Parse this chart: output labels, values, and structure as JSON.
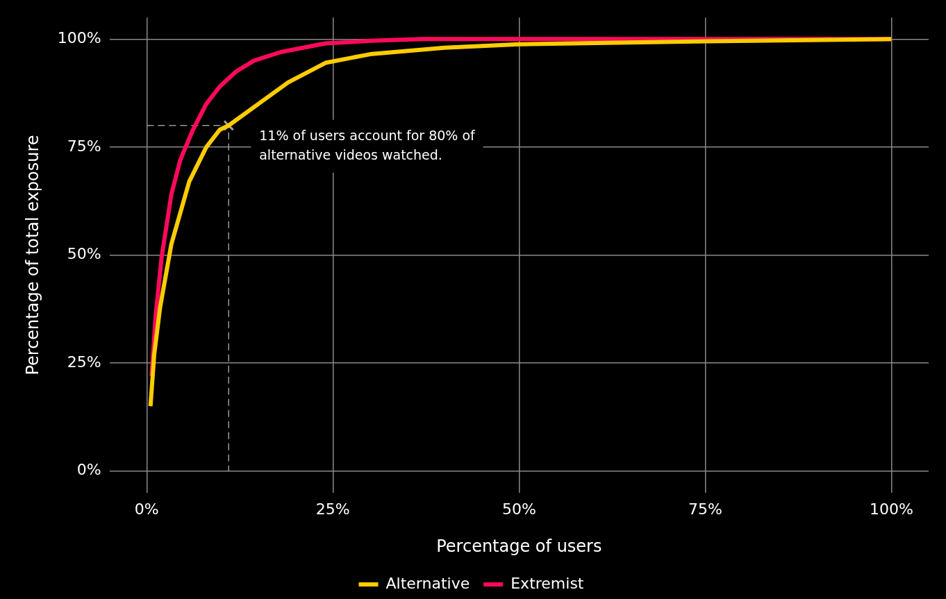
{
  "chart_data": {
    "type": "line",
    "xlabel": "Percentage of users",
    "ylabel": "Percentage of total exposure",
    "xlim": [
      -5,
      105
    ],
    "ylim": [
      -5,
      105
    ],
    "xticks": [
      {
        "value": 0,
        "label": "0%"
      },
      {
        "value": 25,
        "label": "25%"
      },
      {
        "value": 50,
        "label": "50%"
      },
      {
        "value": 75,
        "label": "75%"
      },
      {
        "value": 100,
        "label": "100%"
      }
    ],
    "yticks": [
      {
        "value": 0,
        "label": "0%"
      },
      {
        "value": 25,
        "label": "25%"
      },
      {
        "value": 50,
        "label": "50%"
      },
      {
        "value": 75,
        "label": "75%"
      },
      {
        "value": 100,
        "label": "100%"
      }
    ],
    "grid": true,
    "legend": "bottom",
    "marker": "none",
    "line_style": "solid",
    "series": [
      {
        "name": "Alternative",
        "color": "#ffcc00",
        "x": [
          0.5,
          1.0,
          1.8,
          3.3,
          5.7,
          8.0,
          9.8,
          11,
          15,
          19,
          24,
          30,
          40,
          50,
          75,
          100
        ],
        "values": [
          15,
          27,
          38,
          52.5,
          67,
          75,
          79,
          80,
          85,
          90,
          94.5,
          96.5,
          98,
          98.8,
          99.5,
          100
        ]
      },
      {
        "name": "Extremist",
        "color": "#ff0a5a",
        "x": [
          0.65,
          1.2,
          2,
          3.3,
          4.5,
          6.2,
          8,
          9.8,
          12,
          14.4,
          18,
          24,
          30,
          37,
          50,
          75,
          100
        ],
        "values": [
          22,
          36,
          49.6,
          64,
          72,
          79,
          85,
          89,
          92.5,
          95,
          97,
          99,
          99.6,
          100,
          100,
          100,
          100
        ]
      },
      {
        "type": "line",
        "color": "#9a9a9a",
        "line_style": "dashed",
        "x": [
          0,
          11,
          11
        ],
        "values": [
          80,
          80,
          0
        ]
      },
      {
        "type": "scatter",
        "color": "#a0a0a0",
        "marker": "cross",
        "x": [
          11
        ],
        "values": [
          80
        ]
      }
    ],
    "annotations": [
      {
        "text": "11% of users account for 80% of alternative videos watched.",
        "x": 11,
        "y": 80
      }
    ]
  }
}
